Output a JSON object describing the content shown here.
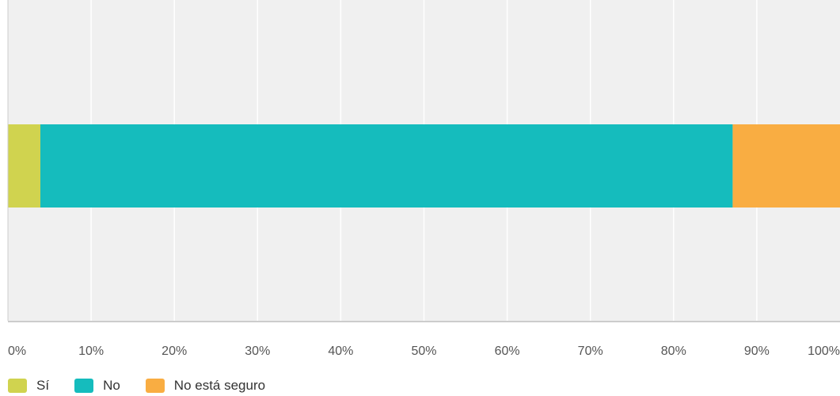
{
  "chart_data": {
    "type": "bar",
    "orientation": "horizontal",
    "stacked": true,
    "title": "",
    "xlabel": "",
    "ylabel": "",
    "xlim": [
      0,
      100
    ],
    "x_ticks": [
      "0%",
      "10%",
      "20%",
      "30%",
      "40%",
      "50%",
      "60%",
      "70%",
      "80%",
      "90%",
      "100%"
    ],
    "grid": true,
    "legend_position": "bottom-left",
    "categories": [
      ""
    ],
    "series": [
      {
        "name": "Sí",
        "values": [
          3.9
        ],
        "color": "#d0d34f"
      },
      {
        "name": "No",
        "values": [
          83.2
        ],
        "color": "#15bcbd"
      },
      {
        "name": "No está seguro",
        "values": [
          12.9
        ],
        "color": "#f9ad42"
      }
    ]
  },
  "colors": {
    "plot_background": "#f0f0f0",
    "grid": "#ffffff",
    "axis": "#cccccc"
  }
}
